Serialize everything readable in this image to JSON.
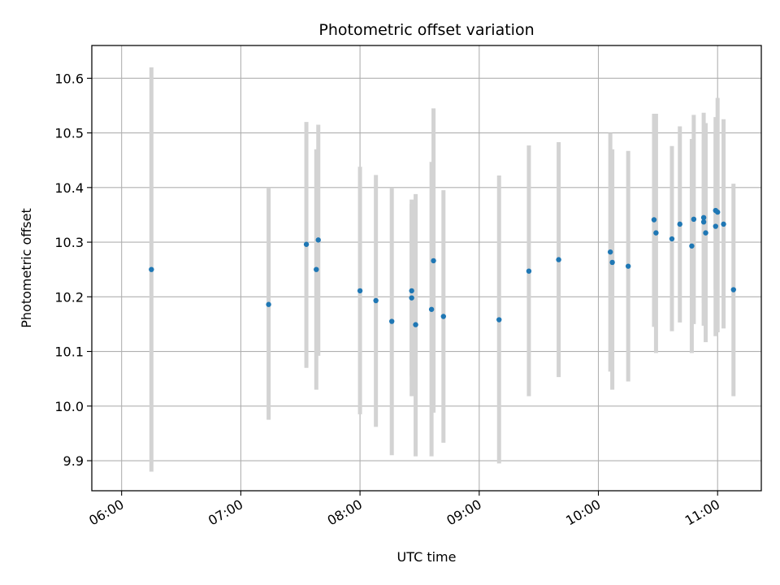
{
  "chart_data": {
    "type": "scatter",
    "title": "Photometric offset variation",
    "xlabel": "UTC time",
    "ylabel": "Photometric offset",
    "xlim": [
      "05:45",
      "11:22"
    ],
    "ylim": [
      9.845,
      10.66
    ],
    "x_ticks": [
      "06:00",
      "07:00",
      "08:00",
      "09:00",
      "10:00",
      "11:00"
    ],
    "y_ticks": [
      9.9,
      10.0,
      10.1,
      10.2,
      10.3,
      10.4,
      10.5,
      10.6
    ],
    "y_tick_labels": [
      "9.9",
      "10.0",
      "10.1",
      "10.2",
      "10.3",
      "10.4",
      "10.5",
      "10.6"
    ],
    "grid": true,
    "colors": {
      "marker": "#1f77b4",
      "errorbar": "#d3d3d3",
      "grid": "#b0b0b0"
    },
    "series": [
      {
        "marker": "circle",
        "errorbars": true,
        "points": [
          {
            "x": "06:15",
            "y": 10.25,
            "low": 9.88,
            "high": 10.62
          },
          {
            "x": "07:14",
            "y": 10.186,
            "low": 9.975,
            "high": 10.4
          },
          {
            "x": "07:33",
            "y": 10.296,
            "low": 10.07,
            "high": 10.52
          },
          {
            "x": "07:38",
            "y": 10.25,
            "low": 10.03,
            "high": 10.47
          },
          {
            "x": "07:39",
            "y": 10.304,
            "low": 10.092,
            "high": 10.515
          },
          {
            "x": "08:00",
            "y": 10.211,
            "low": 9.985,
            "high": 10.438
          },
          {
            "x": "08:08",
            "y": 10.193,
            "low": 9.962,
            "high": 10.423
          },
          {
            "x": "08:16",
            "y": 10.155,
            "low": 9.91,
            "high": 10.4
          },
          {
            "x": "08:26",
            "y": 10.211,
            "low": 10.055,
            "high": 10.37
          },
          {
            "x": "08:26",
            "y": 10.198,
            "low": 10.018,
            "high": 10.378
          },
          {
            "x": "08:28",
            "y": 10.149,
            "low": 9.908,
            "high": 10.388
          },
          {
            "x": "08:36",
            "y": 10.177,
            "low": 9.908,
            "high": 10.447
          },
          {
            "x": "08:37",
            "y": 10.266,
            "low": 9.988,
            "high": 10.545
          },
          {
            "x": "08:42",
            "y": 10.164,
            "low": 9.933,
            "high": 10.395
          },
          {
            "x": "09:10",
            "y": 10.158,
            "low": 9.895,
            "high": 10.422
          },
          {
            "x": "09:25",
            "y": 10.247,
            "low": 10.018,
            "high": 10.477
          },
          {
            "x": "09:40",
            "y": 10.268,
            "low": 10.053,
            "high": 10.483
          },
          {
            "x": "10:06",
            "y": 10.282,
            "low": 10.063,
            "high": 10.5
          },
          {
            "x": "10:07",
            "y": 10.263,
            "low": 10.03,
            "high": 10.47
          },
          {
            "x": "10:15",
            "y": 10.256,
            "low": 10.045,
            "high": 10.467
          },
          {
            "x": "10:28",
            "y": 10.341,
            "low": 10.145,
            "high": 10.535
          },
          {
            "x": "10:29",
            "y": 10.317,
            "low": 10.097,
            "high": 10.535
          },
          {
            "x": "10:37",
            "y": 10.306,
            "low": 10.137,
            "high": 10.476
          },
          {
            "x": "10:41",
            "y": 10.333,
            "low": 10.153,
            "high": 10.512
          },
          {
            "x": "10:47",
            "y": 10.293,
            "low": 10.097,
            "high": 10.489
          },
          {
            "x": "10:48",
            "y": 10.342,
            "low": 10.15,
            "high": 10.533
          },
          {
            "x": "10:53",
            "y": 10.345,
            "low": 10.147,
            "high": 10.537
          },
          {
            "x": "10:53",
            "y": 10.337,
            "low": 10.188,
            "high": 10.487
          },
          {
            "x": "10:54",
            "y": 10.317,
            "low": 10.117,
            "high": 10.518
          },
          {
            "x": "10:59",
            "y": 10.358,
            "low": 10.213,
            "high": 10.503
          },
          {
            "x": "10:59",
            "y": 10.329,
            "low": 10.128,
            "high": 10.529
          },
          {
            "x": "11:00",
            "y": 10.355,
            "low": 10.135,
            "high": 10.564
          },
          {
            "x": "11:03",
            "y": 10.333,
            "low": 10.142,
            "high": 10.525
          },
          {
            "x": "11:08",
            "y": 10.213,
            "low": 10.018,
            "high": 10.407
          }
        ]
      }
    ]
  }
}
